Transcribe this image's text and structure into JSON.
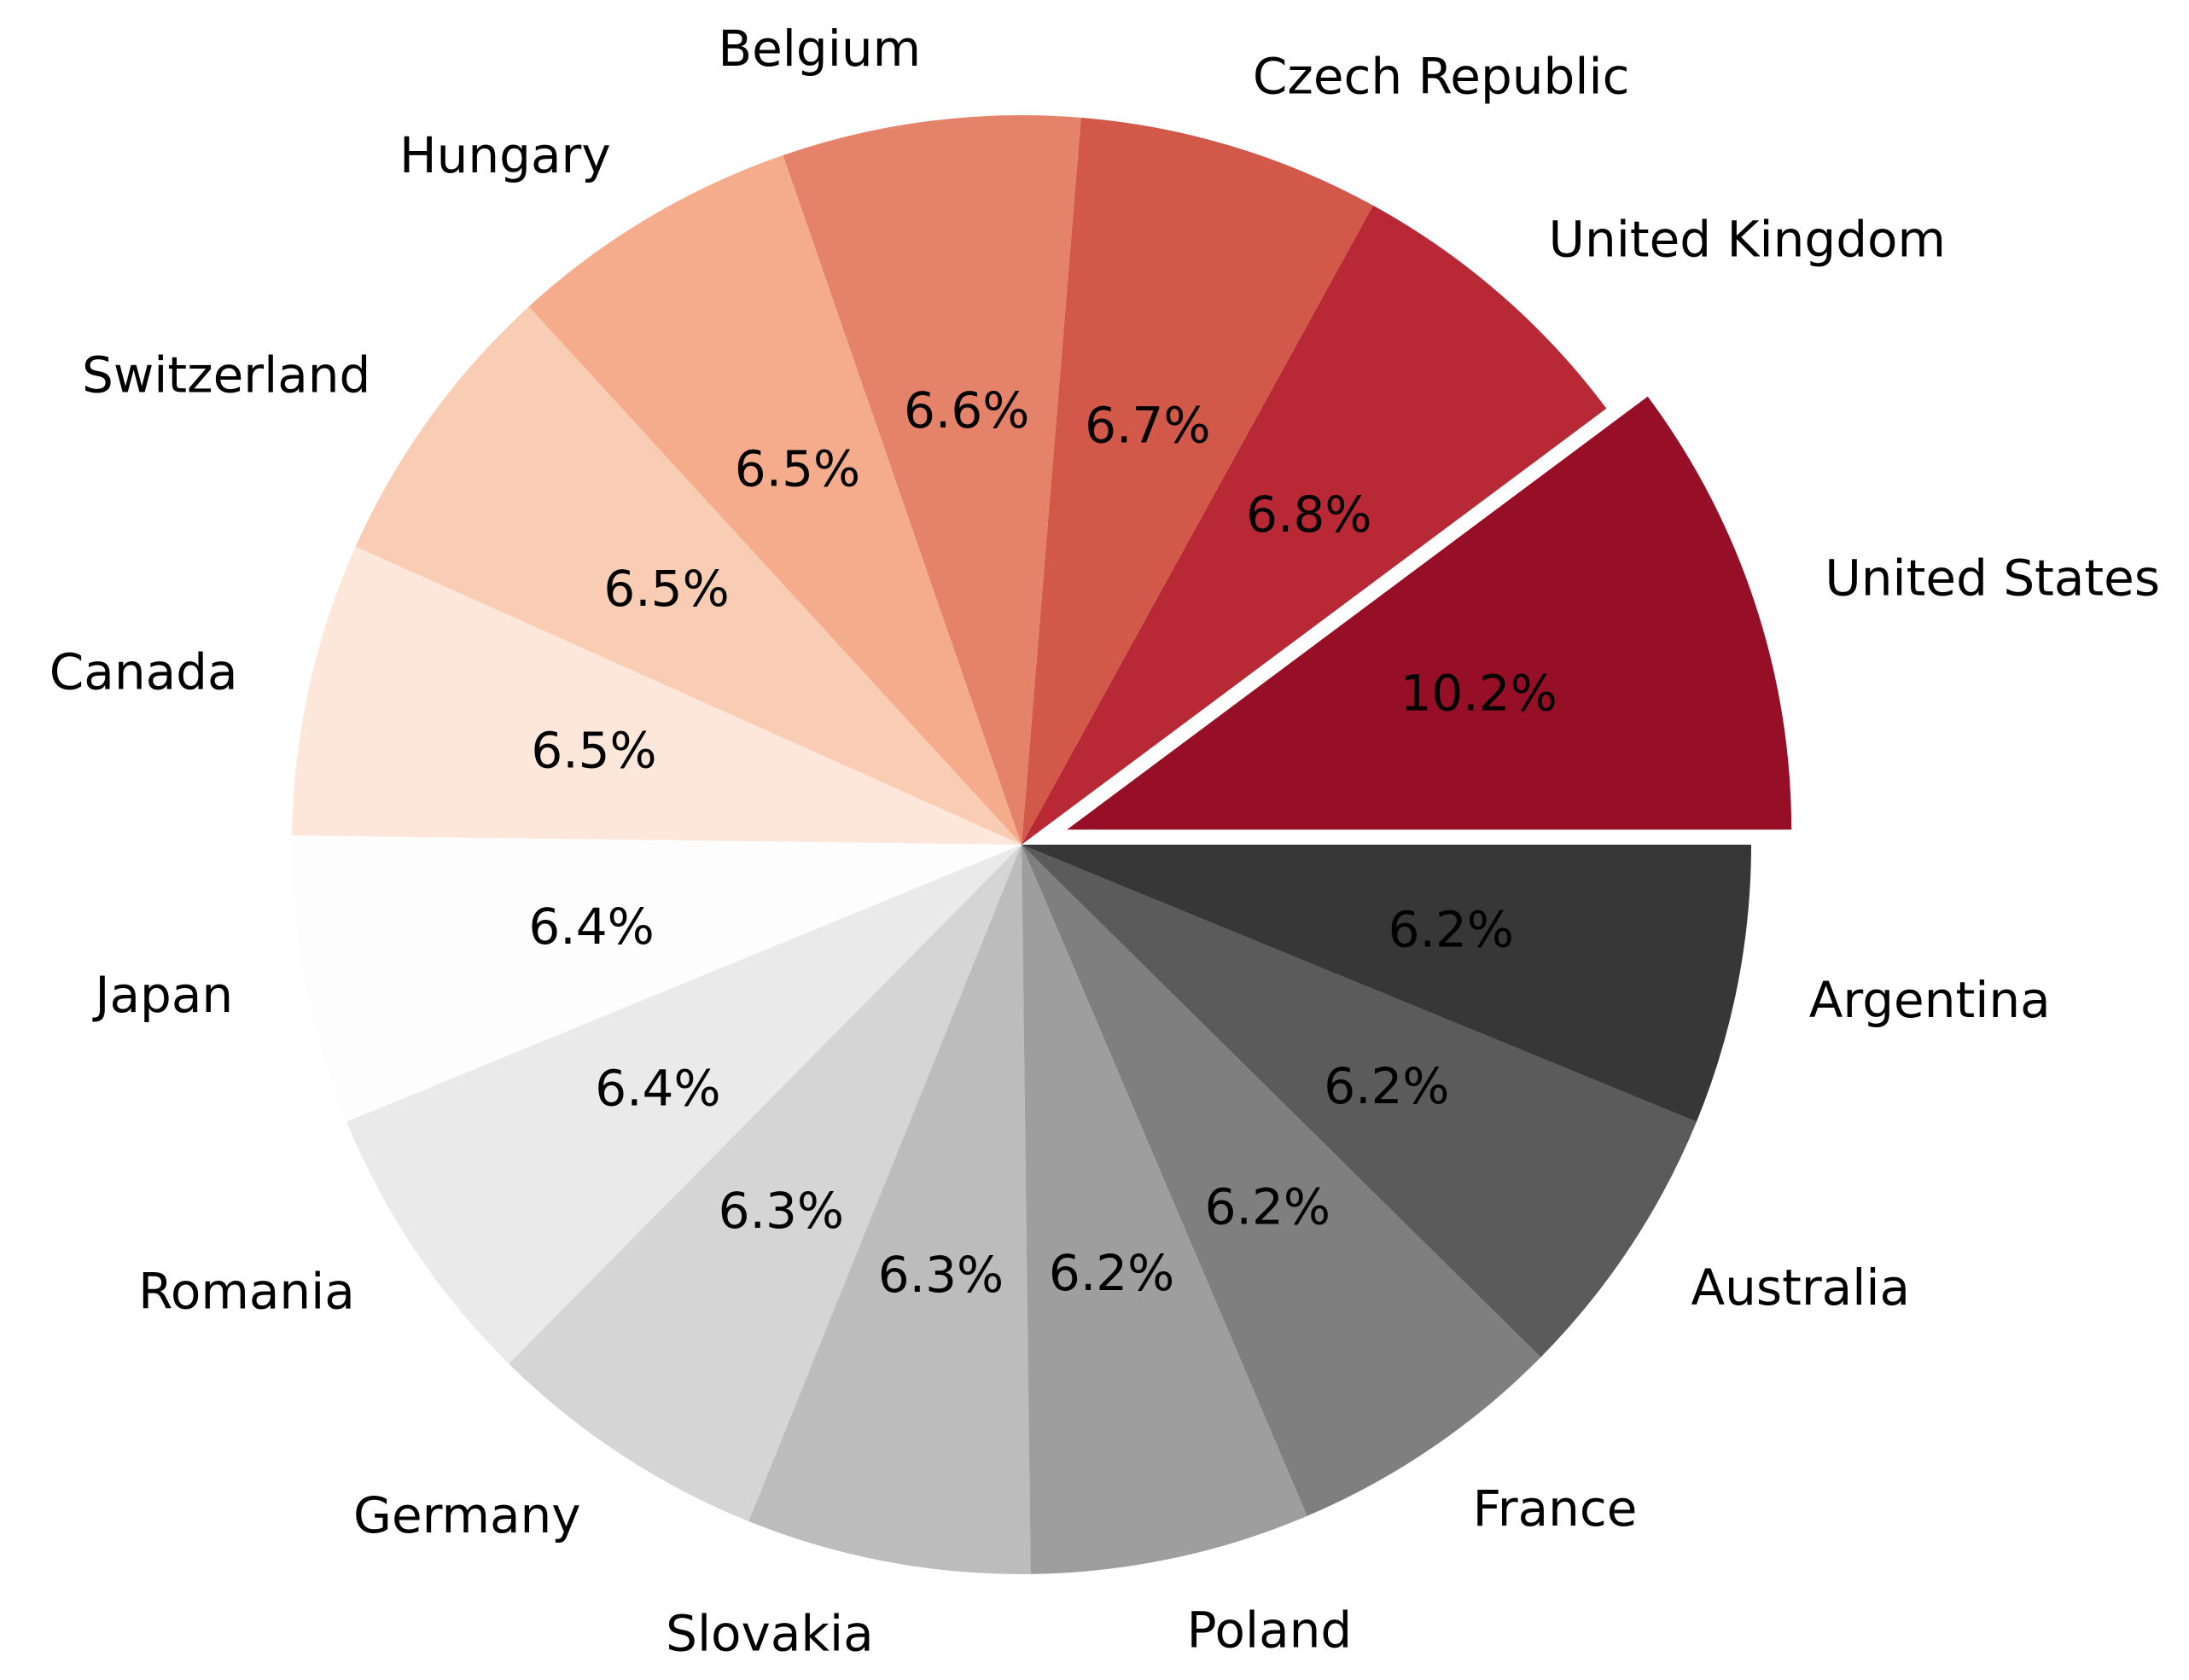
{
  "chart_data": {
    "type": "pie",
    "title": "",
    "start_angle_deg": 0,
    "direction": "counterclockwise",
    "slices": [
      {
        "label": "United States",
        "value": 10.2,
        "pct_label": "10.2%",
        "color": "#960f26",
        "explode": 0.06
      },
      {
        "label": "United Kingdom",
        "value": 6.8,
        "pct_label": "6.8%",
        "color": "#b92835",
        "explode": 0
      },
      {
        "label": "Czech Republic",
        "value": 6.7,
        "pct_label": "6.7%",
        "color": "#d2584a",
        "explode": 0
      },
      {
        "label": "Belgium",
        "value": 6.6,
        "pct_label": "6.6%",
        "color": "#e4826a",
        "explode": 0
      },
      {
        "label": "Hungary",
        "value": 6.5,
        "pct_label": "6.5%",
        "color": "#f4ac8c",
        "explode": 0
      },
      {
        "label": "Switzerland",
        "value": 6.5,
        "pct_label": "6.5%",
        "color": "#f9ccb4",
        "explode": 0
      },
      {
        "label": "Canada",
        "value": 6.5,
        "pct_label": "6.5%",
        "color": "#fde7db",
        "explode": 0
      },
      {
        "label": "Japan",
        "value": 6.4,
        "pct_label": "6.4%",
        "color": "#fdfdfd",
        "explode": 0
      },
      {
        "label": "Romania",
        "value": 6.4,
        "pct_label": "6.4%",
        "color": "#eaeaea",
        "explode": 0
      },
      {
        "label": "Germany",
        "value": 6.3,
        "pct_label": "6.3%",
        "color": "#d5d5d5",
        "explode": 0
      },
      {
        "label": "Slovakia",
        "value": 6.3,
        "pct_label": "6.3%",
        "color": "#bcbcbc",
        "explode": 0
      },
      {
        "label": "Poland",
        "value": 6.2,
        "pct_label": "6.2%",
        "color": "#9e9e9e",
        "explode": 0
      },
      {
        "label": "France",
        "value": 6.2,
        "pct_label": "6.2%",
        "color": "#7f7f7f",
        "explode": 0
      },
      {
        "label": "Australia",
        "value": 6.2,
        "pct_label": "6.2%",
        "color": "#5b5b5b",
        "explode": 0
      },
      {
        "label": "Argentina",
        "value": 6.2,
        "pct_label": "6.2%",
        "color": "#373737",
        "explode": 0
      }
    ]
  }
}
